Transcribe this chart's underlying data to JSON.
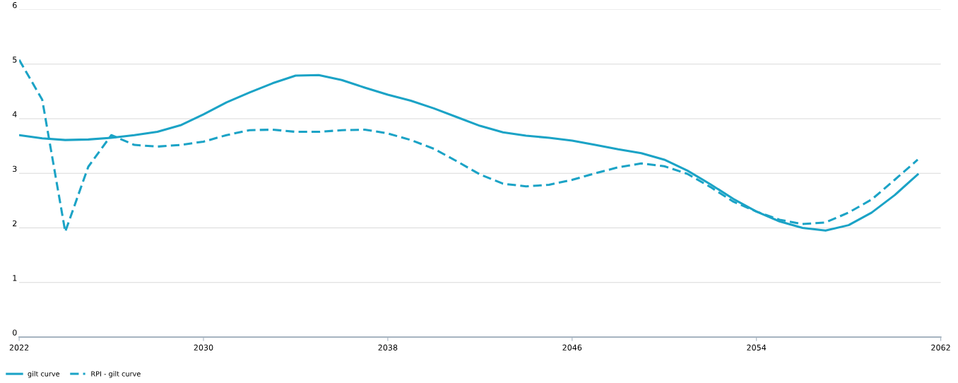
{
  "chart_data": {
    "type": "line",
    "x": [
      2022,
      2023,
      2024,
      2025,
      2026,
      2027,
      2028,
      2029,
      2030,
      2031,
      2032,
      2033,
      2034,
      2035,
      2036,
      2037,
      2038,
      2039,
      2040,
      2041,
      2042,
      2043,
      2044,
      2045,
      2046,
      2047,
      2048,
      2049,
      2050,
      2051,
      2052,
      2053,
      2054,
      2055,
      2056,
      2057,
      2058,
      2059,
      2060,
      2061
    ],
    "series": [
      {
        "name": "gilt curve",
        "color": "#1ba3c6",
        "line_style": "solid",
        "values": [
          3.7,
          3.64,
          3.61,
          3.62,
          3.65,
          3.7,
          3.76,
          3.88,
          4.08,
          4.3,
          4.48,
          4.65,
          4.79,
          4.8,
          4.71,
          4.57,
          4.44,
          4.33,
          4.19,
          4.03,
          3.87,
          3.75,
          3.69,
          3.65,
          3.6,
          3.52,
          3.44,
          3.37,
          3.25,
          3.05,
          2.8,
          2.53,
          2.3,
          2.12,
          2.0,
          1.95,
          2.05,
          2.28,
          2.6,
          2.98
        ]
      },
      {
        "name": "RPI - gilt curve",
        "color": "#1ba3c6",
        "line_style": "dashed",
        "values": [
          5.08,
          4.35,
          1.93,
          3.12,
          3.7,
          3.52,
          3.49,
          3.52,
          3.58,
          3.7,
          3.79,
          3.8,
          3.76,
          3.76,
          3.79,
          3.8,
          3.73,
          3.61,
          3.45,
          3.22,
          2.98,
          2.81,
          2.76,
          2.79,
          2.88,
          3.0,
          3.11,
          3.18,
          3.13,
          2.99,
          2.75,
          2.48,
          2.3,
          2.15,
          2.07,
          2.1,
          2.28,
          2.52,
          2.88,
          3.25
        ]
      }
    ],
    "xlim": [
      2022,
      2062
    ],
    "xticks": [
      2022,
      2030,
      2038,
      2046,
      2054,
      2062
    ],
    "ylim": [
      0,
      6
    ],
    "yticks": [
      0,
      1,
      2,
      3,
      4,
      5,
      6
    ],
    "grid": "y",
    "legend": "bottom left",
    "marker": "none"
  }
}
